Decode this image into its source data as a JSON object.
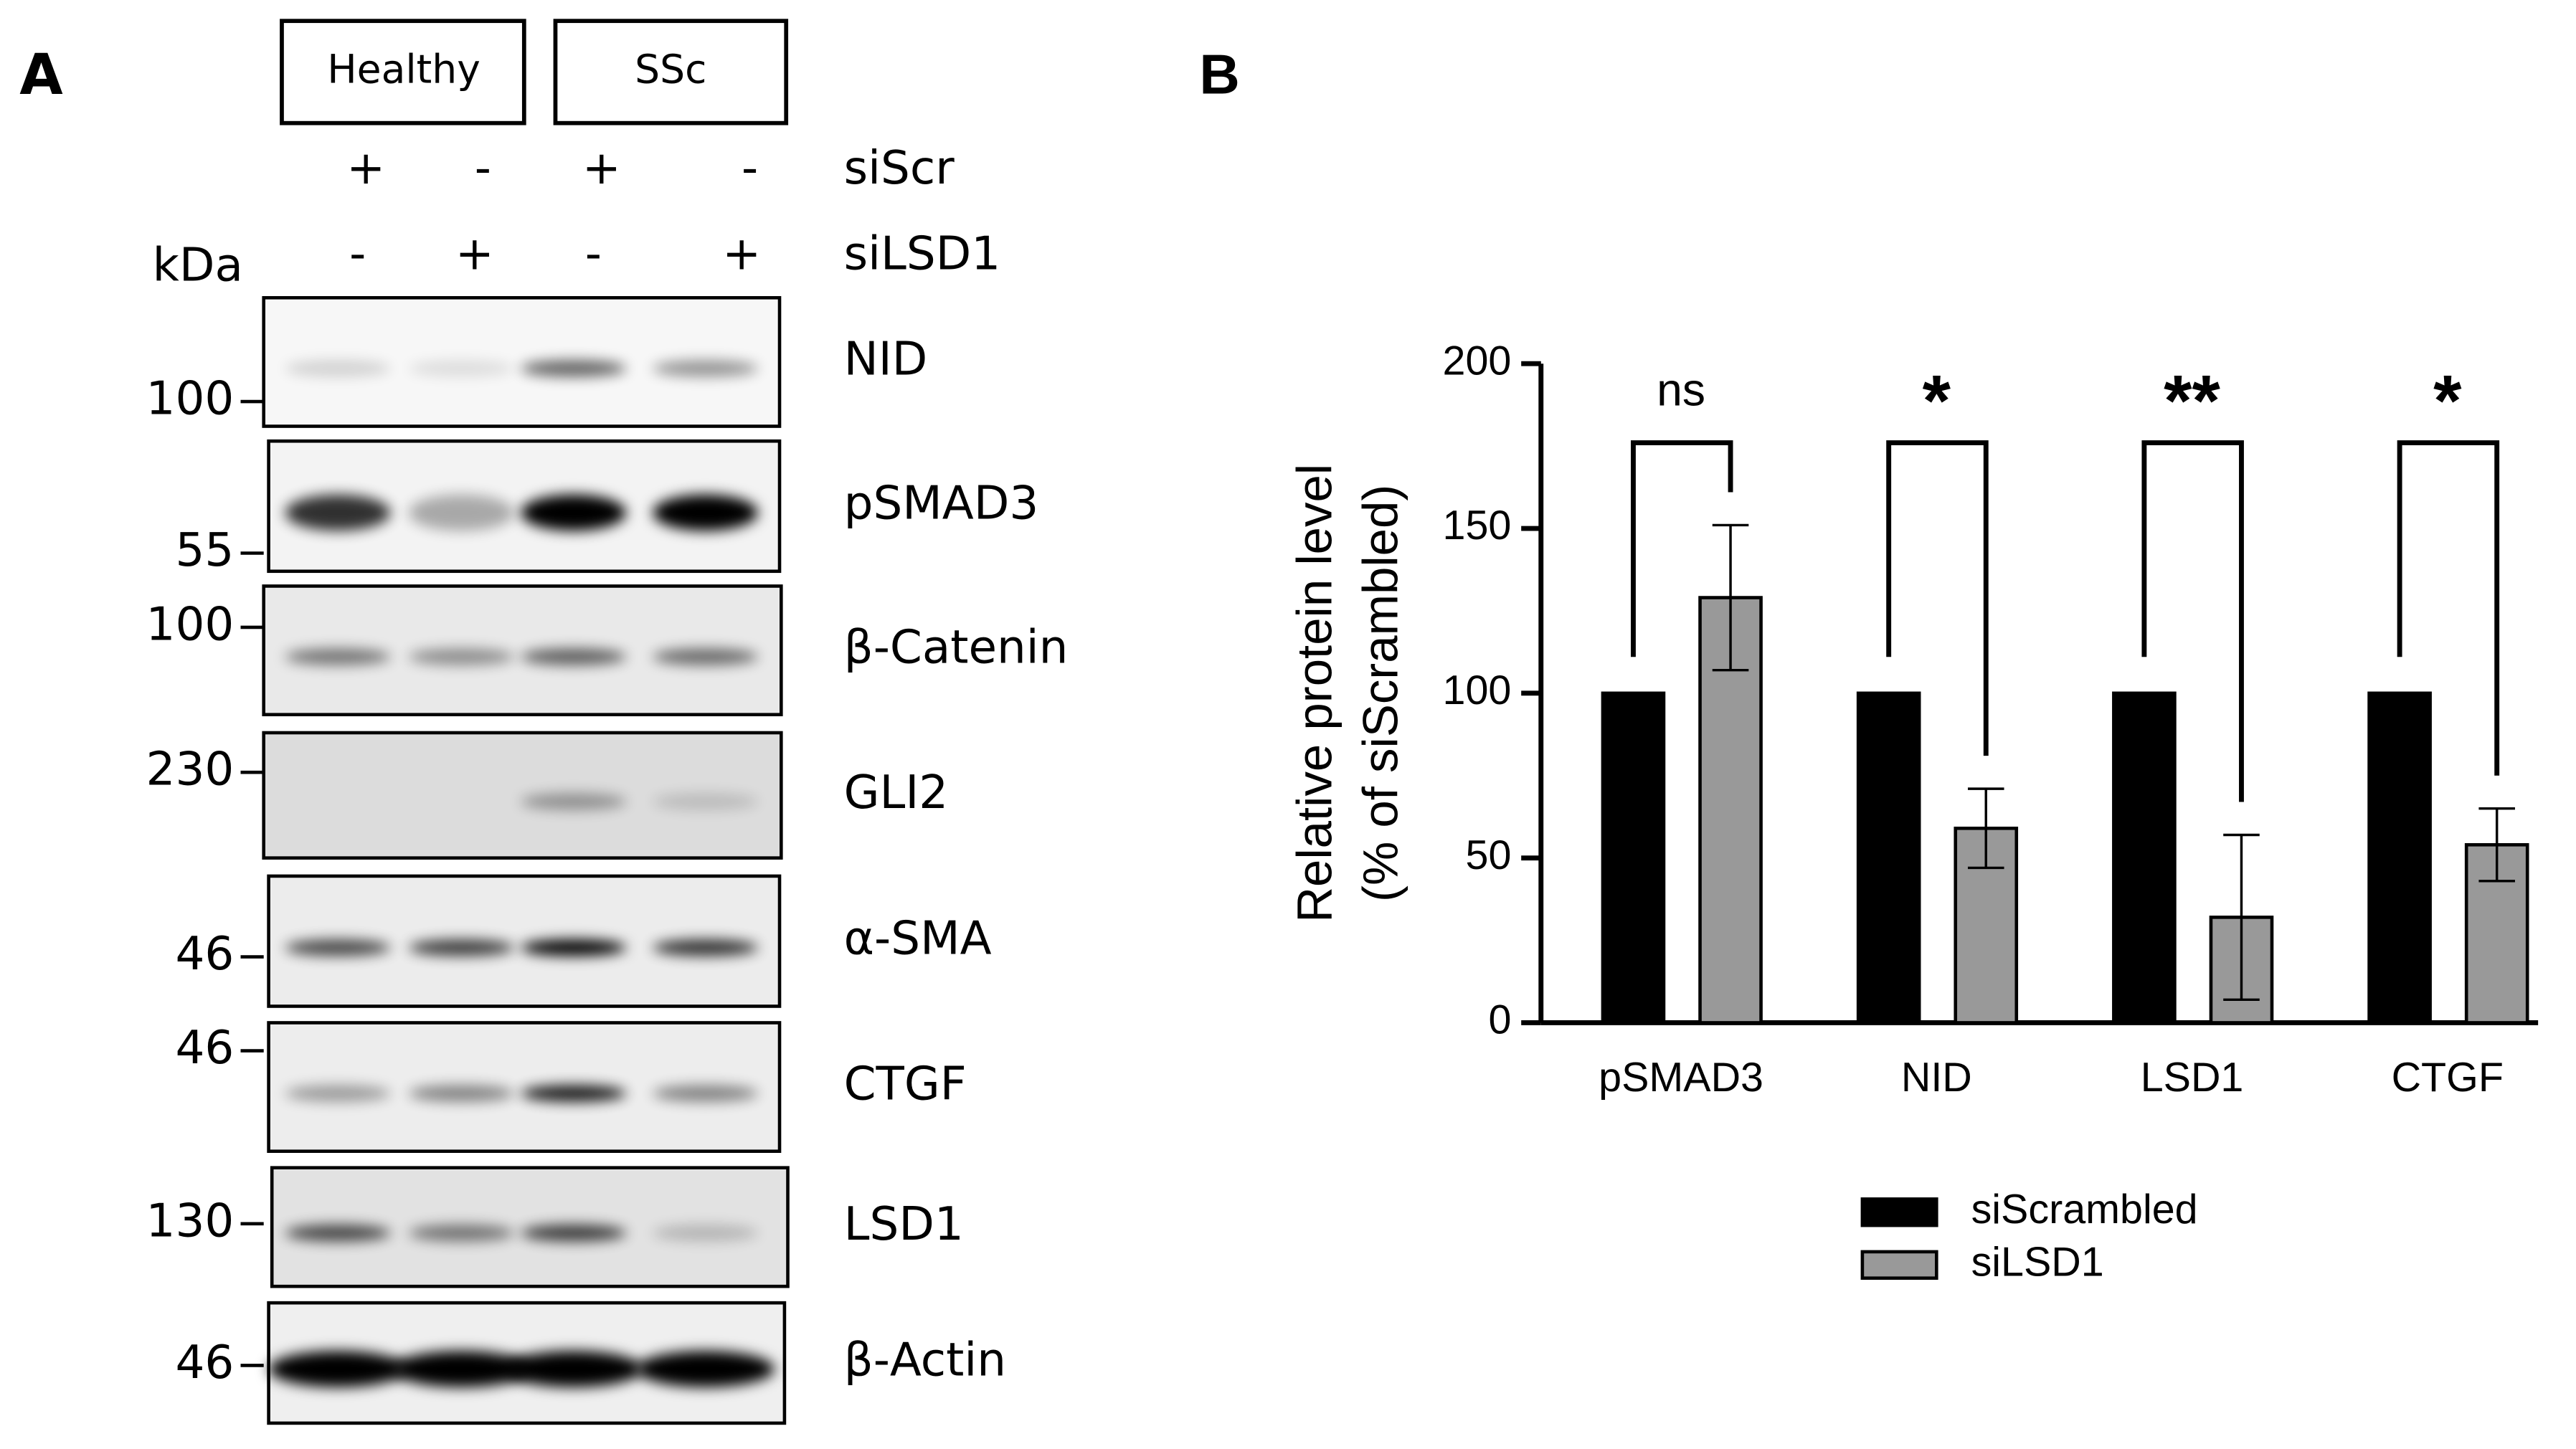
{
  "panel_a": {
    "label": "A",
    "groups": [
      "Healthy",
      "SSc"
    ],
    "treatments": [
      {
        "name": "siScr",
        "signs": [
          "+",
          "-",
          "+",
          "-"
        ]
      },
      {
        "name": "siLSD1",
        "signs": [
          "-",
          "+",
          "-",
          "+"
        ]
      }
    ],
    "kda_label": "kDa",
    "blots": [
      {
        "name": "NID",
        "marker": "100"
      },
      {
        "name": "pSMAD3",
        "marker": "55"
      },
      {
        "name": "β-Catenin",
        "marker": "100"
      },
      {
        "name": "GLI2",
        "marker": "230"
      },
      {
        "name": "α-SMA",
        "marker": "46"
      },
      {
        "name": "CTGF",
        "marker": "46"
      },
      {
        "name": "LSD1",
        "marker": "130"
      },
      {
        "name": "β-Actin",
        "marker": "46"
      }
    ]
  },
  "chart_data": {
    "type": "bar",
    "panel_label": "B",
    "y_label": [
      "Relative protein level",
      "(% of siScrambled)"
    ],
    "categories": [
      "pSMAD3",
      "NID",
      "LSD1",
      "CTGF"
    ],
    "series": [
      {
        "name": "siScrambled",
        "color": "#000000",
        "values": [
          100,
          100,
          100,
          100
        ]
      },
      {
        "name": "siLSD1",
        "color": "#999999",
        "values": [
          129,
          59,
          32,
          54
        ],
        "errors": [
          22,
          12,
          25,
          11
        ]
      }
    ],
    "significance": [
      "ns",
      "*",
      "**",
      "*"
    ],
    "ylim": [
      0,
      200
    ],
    "yticks": [
      0,
      50,
      100,
      150,
      200
    ],
    "grid": false,
    "legend": "bottom"
  }
}
